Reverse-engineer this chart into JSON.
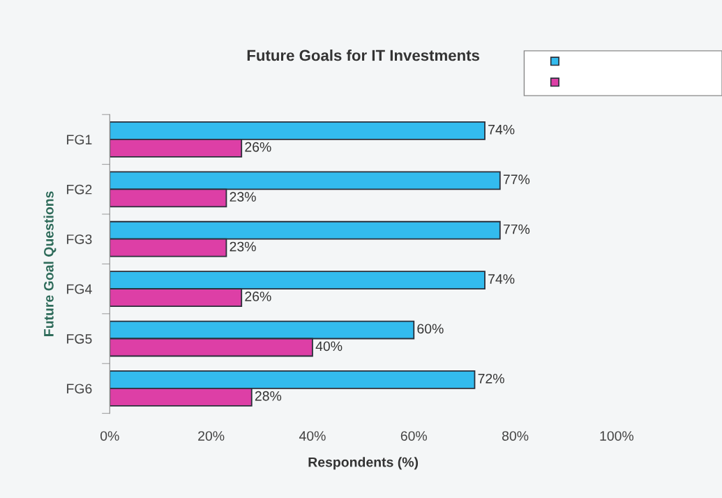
{
  "chart_data": {
    "type": "bar",
    "orientation": "horizontal",
    "title": "Future Goals for IT Investments",
    "xlabel": "Respondents (%)",
    "ylabel": "Future Goal Questions",
    "categories": [
      "FG1",
      "FG2",
      "FG3",
      "FG4",
      "FG5",
      "FG6"
    ],
    "series": [
      {
        "color": "#33bbee",
        "values": [
          74,
          77,
          77,
          74,
          60,
          72
        ],
        "value_labels": [
          "74%",
          "77%",
          "77%",
          "74%",
          "60%",
          "72%"
        ]
      },
      {
        "color": "#dd3fa6",
        "values": [
          26,
          23,
          23,
          26,
          40,
          28
        ],
        "value_labels": [
          "26%",
          "23%",
          "23%",
          "26%",
          "40%",
          "28%"
        ]
      }
    ],
    "xlim": [
      0,
      100
    ],
    "xticks": [
      {
        "value": 0,
        "label": "0%"
      },
      {
        "value": 20,
        "label": "20%"
      },
      {
        "value": 40,
        "label": "40%"
      },
      {
        "value": 60,
        "label": "60%"
      },
      {
        "value": 80,
        "label": "80%"
      },
      {
        "value": 100,
        "label": "100%"
      }
    ],
    "grid": false
  }
}
